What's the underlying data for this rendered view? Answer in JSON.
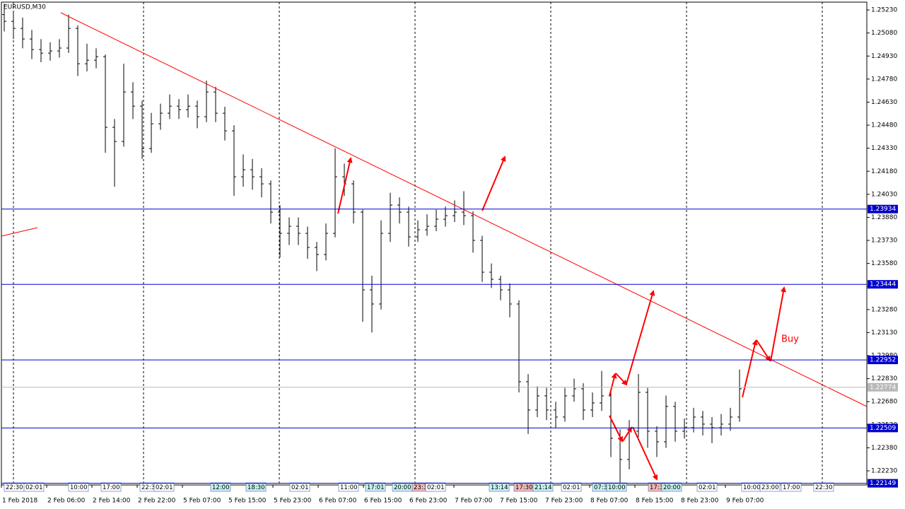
{
  "chart_data": {
    "type": "ohlc",
    "title": "EURUSD,M30",
    "annotation": "Buy",
    "bar_color": "#000000",
    "level_color": "#0000cc",
    "current_color": "#b8b8b8",
    "ylim": [
      1.22138,
      1.25281
    ],
    "yticks": [
      {
        "value": 1.2523,
        "label": "1.25230"
      },
      {
        "value": 1.2508,
        "label": "1.25080"
      },
      {
        "value": 1.2493,
        "label": "1.24930"
      },
      {
        "value": 1.2478,
        "label": "1.24780"
      },
      {
        "value": 1.2463,
        "label": "1.24630"
      },
      {
        "value": 1.2448,
        "label": "1.24480"
      },
      {
        "value": 1.2433,
        "label": "1.24330"
      },
      {
        "value": 1.2418,
        "label": "1.24180"
      },
      {
        "value": 1.2403,
        "label": "1.24030"
      },
      {
        "value": 1.2388,
        "label": "1.23880"
      },
      {
        "value": 1.2373,
        "label": "1.23730"
      },
      {
        "value": 1.2358,
        "label": "1.23580"
      },
      {
        "value": 1.2343,
        "label": "1.23430"
      },
      {
        "value": 1.2328,
        "label": "1.23280"
      },
      {
        "value": 1.2313,
        "label": "1.23130"
      },
      {
        "value": 1.2298,
        "label": "1.22980"
      },
      {
        "value": 1.2283,
        "label": "1.22830"
      },
      {
        "value": 1.2268,
        "label": "1.22680"
      },
      {
        "value": 1.2253,
        "label": "1.22530"
      },
      {
        "value": 1.2238,
        "label": "1.22380"
      },
      {
        "value": 1.2223,
        "label": "1.22230"
      }
    ],
    "levels": [
      1.23934,
      1.23444,
      1.22952,
      1.22509,
      1.22149
    ],
    "current_price": 1.22774,
    "categories": [
      "1 Feb 2018",
      "2 Feb 06:00",
      "2 Feb 14:00",
      "2 Feb 22:00",
      "5 Feb 07:00",
      "5 Feb 15:00",
      "5 Feb 23:00",
      "6 Feb 07:00",
      "6 Feb 15:00",
      "6 Feb 23:00",
      "7 Feb 07:00",
      "7 Feb 15:00",
      "7 Feb 23:00",
      "8 Feb 07:00",
      "8 Feb 15:00",
      "8 Feb 23:00",
      "9 Feb 07:00"
    ],
    "session_labels": [
      "22:30",
      "02:01",
      "10:00",
      "17:00",
      "22:3",
      "02:01",
      "12:00",
      "18:30",
      "02:01",
      "11:00",
      "17:01",
      "20:00",
      "23:3",
      "02:01",
      "13:14",
      "17:30",
      "21:14",
      "02:01",
      "07:3",
      "10:00",
      "17:3",
      "20:00",
      "02:01",
      "10:00",
      "23:00",
      "17:00",
      "22:30"
    ],
    "ohlc": [
      [
        1.252,
        1.2527,
        1.2509,
        1.25156
      ],
      [
        1.25156,
        1.2522,
        1.2504,
        1.2511
      ],
      [
        1.2511,
        1.2518,
        1.2498,
        1.25041
      ],
      [
        1.25041,
        1.251,
        1.2491,
        1.24972
      ],
      [
        1.24972,
        1.2504,
        1.2489,
        1.24949
      ],
      [
        1.24949,
        1.2502,
        1.249,
        1.24963
      ],
      [
        1.24963,
        1.2504,
        1.2492,
        1.24982
      ],
      [
        1.24982,
        1.252,
        1.2495,
        1.2511
      ],
      [
        1.2511,
        1.2513,
        1.248,
        1.2488
      ],
      [
        1.2488,
        1.2501,
        1.2483,
        1.24903
      ],
      [
        1.24903,
        1.2498,
        1.2485,
        1.24926
      ],
      [
        1.24926,
        1.2494,
        1.243,
        1.24466
      ],
      [
        1.24466,
        1.2452,
        1.2408,
        1.24374
      ],
      [
        1.24374,
        1.2488,
        1.2434,
        1.24696
      ],
      [
        1.24696,
        1.2476,
        1.2452,
        1.24604
      ],
      [
        1.24604,
        1.2464,
        1.2426,
        1.24328
      ],
      [
        1.24328,
        1.2456,
        1.243,
        1.24489
      ],
      [
        1.24489,
        1.2462,
        1.2445,
        1.24558
      ],
      [
        1.24558,
        1.2468,
        1.2452,
        1.24604
      ],
      [
        1.24604,
        1.2465,
        1.2452,
        1.24581
      ],
      [
        1.24581,
        1.2468,
        1.2453,
        1.24604
      ],
      [
        1.24604,
        1.2464,
        1.2446,
        1.24535
      ],
      [
        1.24535,
        1.2477,
        1.245,
        1.24696
      ],
      [
        1.24696,
        1.2473,
        1.245,
        1.24558
      ],
      [
        1.24558,
        1.246,
        1.2438,
        1.24443
      ],
      [
        1.24443,
        1.2448,
        1.2402,
        1.24144
      ],
      [
        1.24144,
        1.2429,
        1.2408,
        1.2419
      ],
      [
        1.2419,
        1.2426,
        1.2406,
        1.24144
      ],
      [
        1.24144,
        1.242,
        1.2401,
        1.24098
      ],
      [
        1.24098,
        1.2412,
        1.2384,
        1.23914
      ],
      [
        1.23914,
        1.2396,
        1.2362,
        1.23776
      ],
      [
        1.23776,
        1.2388,
        1.237,
        1.23822
      ],
      [
        1.23822,
        1.2388,
        1.237,
        1.23776
      ],
      [
        1.23776,
        1.2382,
        1.2361,
        1.23684
      ],
      [
        1.23684,
        1.2372,
        1.2353,
        1.23638
      ],
      [
        1.23638,
        1.2384,
        1.236,
        1.23776
      ],
      [
        1.23776,
        1.2433,
        1.2375,
        1.24144
      ],
      [
        1.24144,
        1.2423,
        1.2402,
        1.24098
      ],
      [
        1.24098,
        1.2412,
        1.2384,
        1.23914
      ],
      [
        1.23914,
        1.2393,
        1.232,
        1.23408
      ],
      [
        1.23408,
        1.235,
        1.2313,
        1.23316
      ],
      [
        1.23316,
        1.2386,
        1.2328,
        1.23776
      ],
      [
        1.23776,
        1.2404,
        1.2372,
        1.2396
      ],
      [
        1.2396,
        1.2401,
        1.2384,
        1.23914
      ],
      [
        1.23914,
        1.2395,
        1.2369,
        1.23753
      ],
      [
        1.23753,
        1.2386,
        1.2372,
        1.23799
      ],
      [
        1.23799,
        1.239,
        1.2376,
        1.23822
      ],
      [
        1.23822,
        1.2393,
        1.2379,
        1.23868
      ],
      [
        1.23868,
        1.2395,
        1.2382,
        1.23891
      ],
      [
        1.23891,
        1.2399,
        1.2385,
        1.23914
      ],
      [
        1.23914,
        1.2405,
        1.2383,
        1.23891
      ],
      [
        1.23891,
        1.2392,
        1.2365,
        1.2373
      ],
      [
        1.2373,
        1.2376,
        1.2346,
        1.23523
      ],
      [
        1.23523,
        1.2358,
        1.2342,
        1.23477
      ],
      [
        1.23477,
        1.235,
        1.2334,
        1.23408
      ],
      [
        1.23408,
        1.2345,
        1.2323,
        1.23316
      ],
      [
        1.23316,
        1.2334,
        1.2274,
        1.2281
      ],
      [
        1.2281,
        1.2286,
        1.2247,
        1.22626
      ],
      [
        1.22626,
        1.2278,
        1.2258,
        1.22718
      ],
      [
        1.22718,
        1.2277,
        1.2256,
        1.22626
      ],
      [
        1.22626,
        1.2268,
        1.2251,
        1.2258
      ],
      [
        1.2258,
        1.2277,
        1.2255,
        1.22718
      ],
      [
        1.22718,
        1.2283,
        1.2268,
        1.22764
      ],
      [
        1.22764,
        1.228,
        1.2256,
        1.22626
      ],
      [
        1.22626,
        1.2274,
        1.2258,
        1.22672
      ],
      [
        1.22672,
        1.2288,
        1.2262,
        1.22718
      ],
      [
        1.22718,
        1.2274,
        1.2232,
        1.22442
      ],
      [
        1.22442,
        1.225,
        1.2215,
        1.22304
      ],
      [
        1.22304,
        1.2256,
        1.2224,
        1.22488
      ],
      [
        1.22488,
        1.2286,
        1.2245,
        1.22741
      ],
      [
        1.22741,
        1.2277,
        1.2238,
        1.22488
      ],
      [
        1.22488,
        1.2252,
        1.2232,
        1.22419
      ],
      [
        1.22419,
        1.2272,
        1.2238,
        1.22649
      ],
      [
        1.22649,
        1.2268,
        1.2242,
        1.22488
      ],
      [
        1.22488,
        1.2257,
        1.2244,
        1.22511
      ],
      [
        1.22511,
        1.2264,
        1.2248,
        1.2258
      ],
      [
        1.2258,
        1.2262,
        1.2246,
        1.22534
      ],
      [
        1.22534,
        1.2258,
        1.2241,
        1.22511
      ],
      [
        1.22511,
        1.226,
        1.2246,
        1.22534
      ],
      [
        1.22534,
        1.2264,
        1.2249,
        1.2258
      ],
      [
        1.2258,
        1.2289,
        1.2255,
        1.22764
      ]
    ]
  }
}
